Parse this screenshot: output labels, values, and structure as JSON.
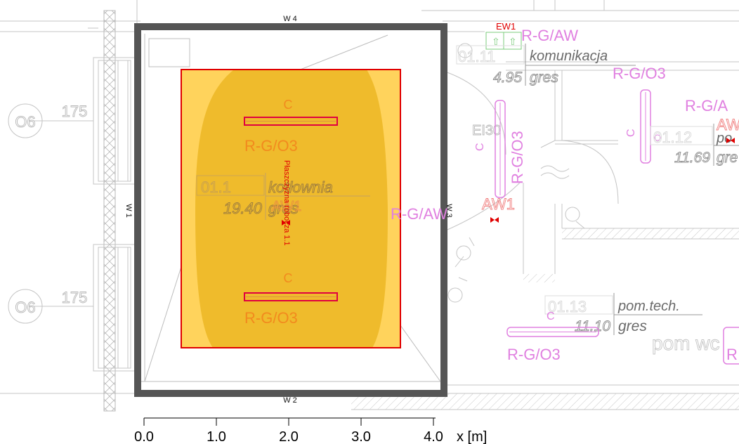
{
  "walls": {
    "top": "W 4",
    "bottom": "W 2",
    "left": "W 1",
    "right": "W 3"
  },
  "room_main": {
    "number": "01.1",
    "name": "kotłownia",
    "area": "19.40",
    "floor": "gres"
  },
  "room_komunikacja": {
    "number": "01.11",
    "name": "komunikacja",
    "area": "4.95",
    "floor": "gres"
  },
  "room_012": {
    "number": "01.12",
    "name": "po",
    "area": "11.69",
    "floor": "gre"
  },
  "room_013": {
    "number": "01.13",
    "name": "pom.tech.",
    "area": "11.10",
    "floor": "gres"
  },
  "room_pomwc": {
    "name": "pom wc"
  },
  "work_plane_label": "Płaszczyzna robocza 1.1",
  "luminaire_top": {
    "code": "C",
    "type": "R-G/O3"
  },
  "luminaire_bottom": {
    "code": "C",
    "type": "R-G/O3"
  },
  "center_mark": "AW1",
  "labels": {
    "ew1": "EW1",
    "r_g_aw_top": "R-G/AW",
    "r_g_o3_top_right": "R-G/O3",
    "r_g_a_right": "R-G/A",
    "aw_right": "AW",
    "ei30": "EI30",
    "r_g_o3_vertical": "R-G/O3",
    "c_vertical": "C",
    "c_right": "C",
    "r_g_aw_mid": "R-G/AW",
    "aw1_mid": "AW1",
    "c_bottom": "C",
    "r_g_o3_bottom": "R-G/O3",
    "r_bottom_right": "R"
  },
  "windows": [
    {
      "id": "O6",
      "width": "175",
      "height_suffix": "0"
    },
    {
      "id": "O6",
      "width": "175",
      "height_suffix": "0"
    }
  ],
  "scale": {
    "ticks": [
      "0.0",
      "1.0",
      "2.0",
      "3.0",
      "4.0"
    ],
    "unit": "x [m]"
  },
  "colors": {
    "wall": "#555555",
    "work_plane_border": "#e00000",
    "illuminance_outer": "#ffd35c",
    "illuminance_inner": "#efbb2c",
    "luminaire": "#e00040",
    "annotation_pink": "#e080e0",
    "annotation_grey": "#a8a8a8"
  }
}
